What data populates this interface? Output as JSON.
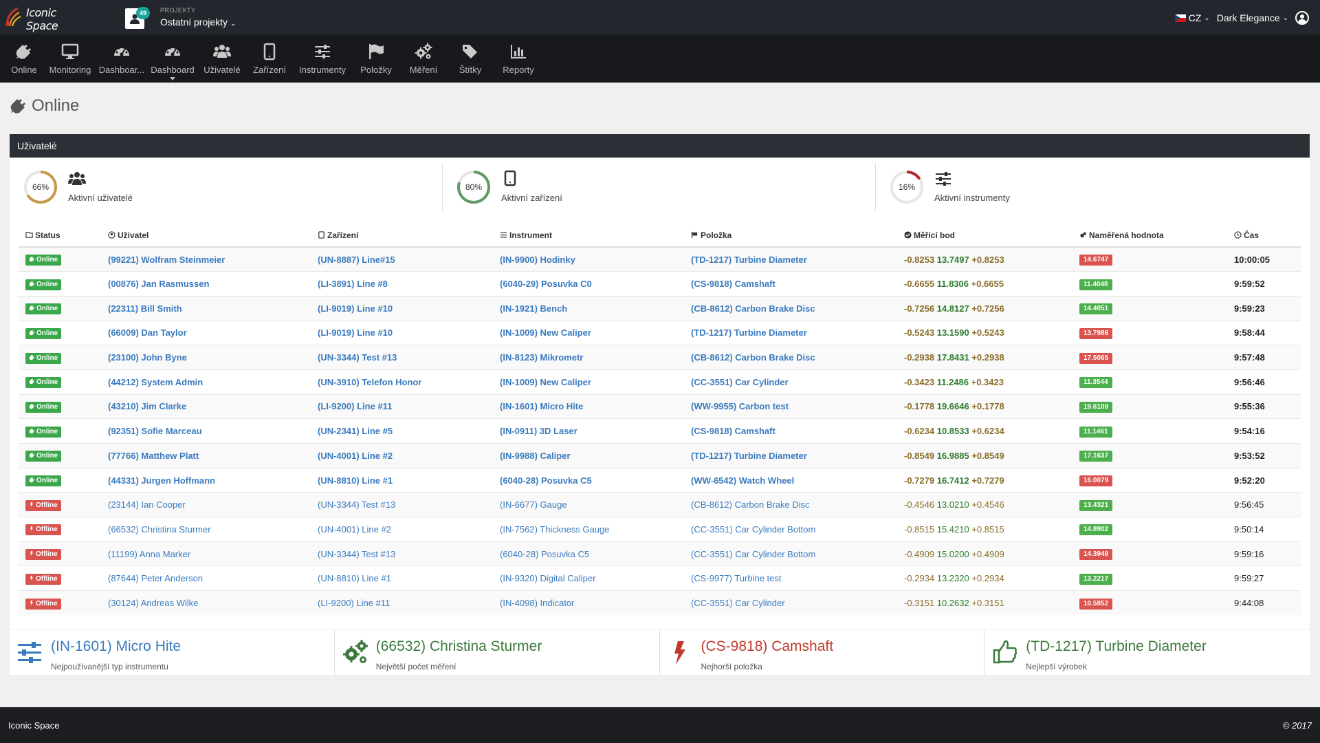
{
  "header": {
    "logo_text": "Iconic Space",
    "project_badge": "49",
    "project_label": "PROJEKTY",
    "project_name": "Ostatní projekty",
    "language": "CZ",
    "theme": "Dark Elegance"
  },
  "nav": [
    {
      "label": "Online",
      "icon": "plug-icon"
    },
    {
      "label": "Monitoring",
      "icon": "monitor-icon"
    },
    {
      "label": "Dashboar...",
      "icon": "dashboard-icon"
    },
    {
      "label": "Dashboard",
      "icon": "dashboard-icon"
    },
    {
      "label": "Uživatelé",
      "icon": "users-icon"
    },
    {
      "label": "Zařízení",
      "icon": "tablet-icon"
    },
    {
      "label": "Instrumenty",
      "icon": "sliders-icon"
    },
    {
      "label": "Položky",
      "icon": "flag-icon"
    },
    {
      "label": "Měření",
      "icon": "gears-icon"
    },
    {
      "label": "Štítky",
      "icon": "tags-icon"
    },
    {
      "label": "Reporty",
      "icon": "bar-chart-icon"
    }
  ],
  "page": {
    "title": "Online"
  },
  "panel": {
    "title": "Uživatelé"
  },
  "stats": [
    {
      "percent": "66%",
      "fraction": 0.66,
      "label": "Aktivní uživatelé",
      "color": "#c79a4a",
      "icon": "users-icon"
    },
    {
      "percent": "80%",
      "fraction": 0.8,
      "label": "Aktivní zařízení",
      "color": "#5e9b63",
      "icon": "tablet-icon"
    },
    {
      "percent": "16%",
      "fraction": 0.16,
      "label": "Aktivní instrumenty",
      "color": "#b5242c",
      "icon": "sliders-icon"
    }
  ],
  "table": {
    "columns": [
      "Status",
      "Uživatel",
      "Zařízení",
      "Instrument",
      "Položka",
      "Měřicí bod",
      "Naměřená hodnota",
      "Čas"
    ],
    "rows": [
      {
        "status": "Online",
        "user": "(99221) Wolfram Steinmeier",
        "device": "(UN-8887) Line#15",
        "instrument": "(IN-9900) Hodinky",
        "item": "(TD-1217) Turbine Diameter",
        "m_lo": "-0.8253",
        "m_val": "13.7497",
        "m_hi": "+0.8253",
        "value": "14.6747",
        "value_status": "bad",
        "time": "10:00:05"
      },
      {
        "status": "Online",
        "user": "(00876) Jan Rasmussen",
        "device": "(LI-3891) Line #8",
        "instrument": "(6040-29) Posuvka C0",
        "item": "(CS-9818) Camshaft",
        "m_lo": "-0.6655",
        "m_val": "11.8306",
        "m_hi": "+0.6655",
        "value": "11.4048",
        "value_status": "good",
        "time": "9:59:52"
      },
      {
        "status": "Online",
        "user": "(22311) Bill Smith",
        "device": "(LI-9019) Line #10",
        "instrument": "(IN-1921) Bench",
        "item": "(CB-8612) Carbon Brake Disc",
        "m_lo": "-0.7256",
        "m_val": "14.8127",
        "m_hi": "+0.7256",
        "value": "14.4051",
        "value_status": "good",
        "time": "9:59:23"
      },
      {
        "status": "Online",
        "user": "(66009) Dan Taylor",
        "device": "(LI-9019) Line #10",
        "instrument": "(IN-1009) New Caliper",
        "item": "(TD-1217) Turbine Diameter",
        "m_lo": "-0.5243",
        "m_val": "13.1590",
        "m_hi": "+0.5243",
        "value": "13.7986",
        "value_status": "bad",
        "time": "9:58:44"
      },
      {
        "status": "Online",
        "user": "(23100) John Byne",
        "device": "(UN-3344) Test #13",
        "instrument": "(IN-8123) Mikrometr",
        "item": "(CB-8612) Carbon Brake Disc",
        "m_lo": "-0.2938",
        "m_val": "17.8431",
        "m_hi": "+0.2938",
        "value": "17.5065",
        "value_status": "bad",
        "time": "9:57:48"
      },
      {
        "status": "Online",
        "user": "(44212) System Admin",
        "device": "(UN-3910) Telefon Honor",
        "instrument": "(IN-1009) New Caliper",
        "item": "(CC-3551) Car Cylinder",
        "m_lo": "-0.3423",
        "m_val": "11.2486",
        "m_hi": "+0.3423",
        "value": "11.3544",
        "value_status": "good",
        "time": "9:56:46"
      },
      {
        "status": "Online",
        "user": "(43210) Jim Clarke",
        "device": "(LI-9200) Line #11",
        "instrument": "(IN-1601) Micro Hite",
        "item": "(WW-9955) Carbon test",
        "m_lo": "-0.1778",
        "m_val": "19.6646",
        "m_hi": "+0.1778",
        "value": "19.6109",
        "value_status": "good",
        "time": "9:55:36"
      },
      {
        "status": "Online",
        "user": "(92351) Sofie Marceau",
        "device": "(UN-2341) Line #5",
        "instrument": "(IN-0911) 3D Laser",
        "item": "(CS-9818) Camshaft",
        "m_lo": "-0.6234",
        "m_val": "10.8533",
        "m_hi": "+0.6234",
        "value": "11.1461",
        "value_status": "good",
        "time": "9:54:16"
      },
      {
        "status": "Online",
        "user": "(77766) Matthew Platt",
        "device": "(UN-4001) Line #2",
        "instrument": "(IN-9988) Caliper",
        "item": "(TD-1217) Turbine Diameter",
        "m_lo": "-0.8549",
        "m_val": "16.9885",
        "m_hi": "+0.8549",
        "value": "17.1637",
        "value_status": "good",
        "time": "9:53:52"
      },
      {
        "status": "Online",
        "user": "(44331) Jurgen Hoffmann",
        "device": "(UN-8810) Line #1",
        "instrument": "(6040-28) Posuvka C5",
        "item": "(WW-6542) Watch Wheel",
        "m_lo": "-0.7279",
        "m_val": "16.7412",
        "m_hi": "+0.7279",
        "value": "16.0079",
        "value_status": "bad",
        "time": "9:52:20"
      },
      {
        "status": "Offline",
        "user": "(23144) Ian Cooper",
        "device": "(UN-3344) Test #13",
        "instrument": "(IN-6677) Gauge",
        "item": "(CB-8612) Carbon Brake Disc",
        "m_lo": "-0.4546",
        "m_val": "13.0210",
        "m_hi": "+0.4546",
        "value": "13.4321",
        "value_status": "good",
        "time": "9:56:45"
      },
      {
        "status": "Offline",
        "user": "(66532) Christina Sturmer",
        "device": "(UN-4001) Line #2",
        "instrument": "(IN-7562) Thickness Gauge",
        "item": "(CC-3551) Car Cylinder Bottom",
        "m_lo": "-0.8515",
        "m_val": "15.4210",
        "m_hi": "+0.8515",
        "value": "14.8902",
        "value_status": "good",
        "time": "9:50:14"
      },
      {
        "status": "Offline",
        "user": "(11199) Anna Marker",
        "device": "(UN-3344) Test #13",
        "instrument": "(6040-28) Posuvka C5",
        "item": "(CC-3551) Car Cylinder Bottom",
        "m_lo": "-0.4909",
        "m_val": "15.0200",
        "m_hi": "+0.4909",
        "value": "14.3949",
        "value_status": "bad",
        "time": "9:59:16"
      },
      {
        "status": "Offline",
        "user": "(87644) Peter Anderson",
        "device": "(UN-8810) Line #1",
        "instrument": "(IN-9320) Digital Caliper",
        "item": "(CS-9977) Turbine test",
        "m_lo": "-0.2934",
        "m_val": "13.2320",
        "m_hi": "+0.2934",
        "value": "13.2217",
        "value_status": "good",
        "time": "9:59:27"
      },
      {
        "status": "Offline",
        "user": "(30124) Andreas Wilke",
        "device": "(LI-9200) Line #11",
        "instrument": "(IN-4098) Indicator",
        "item": "(CC-3551) Car Cylinder",
        "m_lo": "-0.3151",
        "m_val": "10.2632",
        "m_hi": "+0.3151",
        "value": "10.5852",
        "value_status": "bad",
        "time": "9:44:08"
      }
    ]
  },
  "bottom_stats": [
    {
      "title": "(IN-1601) Micro Hite",
      "caption": "Nejpoužívanější typ instrumentu",
      "color": "#3a7bbf",
      "icon": "sliders-icon"
    },
    {
      "title": "(66532) Christina Sturmer",
      "caption": "Největší počet měření",
      "color": "#3d7a3d",
      "icon": "gears-icon"
    },
    {
      "title": "(CS-9818) Camshaft",
      "caption": "Nejhorší položka",
      "color": "#c0392b",
      "icon": "lightning-icon"
    },
    {
      "title": "(TD-1217) Turbine Diameter",
      "caption": "Nejlepší výrobek",
      "color": "#3d7a3d",
      "icon": "thumbs-up-icon"
    }
  ],
  "footer": {
    "left": "Iconic Space",
    "right": "© 2017"
  },
  "colors": {
    "topbar": "#23272d",
    "navbar": "#17191c",
    "online": "#3aa84a",
    "offline": "#d9534f",
    "link": "#3a7bbf"
  }
}
